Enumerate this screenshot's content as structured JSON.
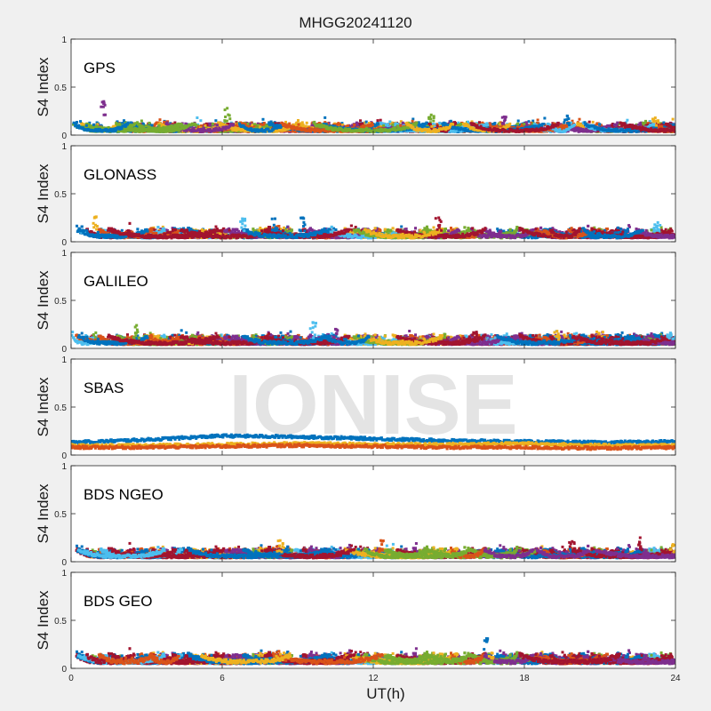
{
  "title": "MHGG20241120",
  "watermark": "IONISE",
  "colors": [
    "#0072bd",
    "#d95319",
    "#edb120",
    "#7e2f8e",
    "#77ac30",
    "#4dbeee",
    "#a2142f"
  ],
  "chart_data": {
    "type": "scatter",
    "xlabel": "UT(h)",
    "ylabel": "S4 Index",
    "xlim": [
      0,
      24
    ],
    "ylim": [
      0,
      1
    ],
    "xticks": [
      "0",
      "6",
      "12",
      "18",
      "24"
    ],
    "yticks": [
      "0",
      "0.5",
      "1"
    ],
    "grid": false,
    "panels": [
      {
        "name": "GPS",
        "baseline_s4": 0.06,
        "peaks": [
          {
            "x": 1.3,
            "y": 0.35
          },
          {
            "x": 6.2,
            "y": 0.28
          },
          {
            "x": 14.3,
            "y": 0.21
          },
          {
            "x": 17.2,
            "y": 0.19
          },
          {
            "x": 19.7,
            "y": 0.2
          },
          {
            "x": 23.2,
            "y": 0.18
          }
        ]
      },
      {
        "name": "GLONASS",
        "baseline_s4": 0.07,
        "peaks": [
          {
            "x": 1.0,
            "y": 0.26
          },
          {
            "x": 6.8,
            "y": 0.24
          },
          {
            "x": 8.1,
            "y": 0.24
          },
          {
            "x": 9.2,
            "y": 0.25
          },
          {
            "x": 14.6,
            "y": 0.25
          },
          {
            "x": 23.3,
            "y": 0.2
          }
        ]
      },
      {
        "name": "GALILEO",
        "baseline_s4": 0.07,
        "peaks": [
          {
            "x": 2.6,
            "y": 0.24
          },
          {
            "x": 9.6,
            "y": 0.27
          },
          {
            "x": 10.5,
            "y": 0.2
          },
          {
            "x": 16.1,
            "y": 0.17
          },
          {
            "x": 19.3,
            "y": 0.18
          },
          {
            "x": 23.8,
            "y": 0.16
          }
        ]
      },
      {
        "name": "SBAS",
        "baseline_s4": 0.09,
        "sbas_series": [
          {
            "color_index": 0,
            "level": [
              0.13,
              0.16,
              0.2,
              0.19,
              0.17,
              0.15,
              0.14,
              0.13,
              0.14
            ]
          },
          {
            "color_index": 2,
            "level": [
              0.1,
              0.1,
              0.11,
              0.12,
              0.11,
              0.11,
              0.12,
              0.1,
              0.1
            ]
          },
          {
            "color_index": 1,
            "level": [
              0.08,
              0.08,
              0.09,
              0.1,
              0.09,
              0.08,
              0.08,
              0.07,
              0.08
            ]
          }
        ],
        "peaks": []
      },
      {
        "name": "BDS NGEO",
        "baseline_s4": 0.07,
        "peaks": [
          {
            "x": 8.3,
            "y": 0.22
          },
          {
            "x": 12.3,
            "y": 0.22
          },
          {
            "x": 19.9,
            "y": 0.21
          },
          {
            "x": 22.6,
            "y": 0.25
          },
          {
            "x": 23.9,
            "y": 0.18
          }
        ]
      },
      {
        "name": "BDS GEO",
        "baseline_s4": 0.085,
        "peaks": [
          {
            "x": 3.3,
            "y": 0.13
          },
          {
            "x": 16.5,
            "y": 0.31
          },
          {
            "x": 16.7,
            "y": 0.16
          }
        ]
      }
    ]
  }
}
